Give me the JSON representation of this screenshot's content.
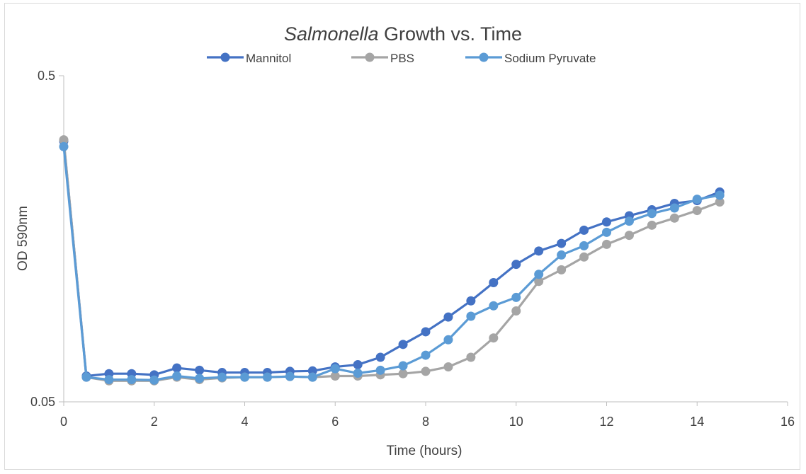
{
  "chart_data": {
    "type": "line",
    "title_italic": "Salmonella",
    "title_rest": " Growth vs. Time",
    "xlabel": "Time (hours)",
    "ylabel": "OD 590nm",
    "x_scale": "linear",
    "y_scale": "log",
    "xlim": [
      0,
      16
    ],
    "ylim": [
      0.05,
      0.5
    ],
    "x_ticks": [
      0,
      2,
      4,
      6,
      8,
      10,
      12,
      14,
      16
    ],
    "y_ticks": [
      0.05,
      0.5
    ],
    "x_tick_labels": [
      "0",
      "2",
      "4",
      "6",
      "8",
      "10",
      "12",
      "14",
      "16"
    ],
    "y_tick_labels": [
      "0.05",
      "0.5"
    ],
    "grid": false,
    "legend_position": "top",
    "x": [
      0,
      0.5,
      1,
      1.5,
      2,
      2.5,
      3,
      3.5,
      4,
      4.5,
      5,
      5.5,
      6,
      6.5,
      7,
      7.5,
      8,
      8.5,
      9,
      9.5,
      10,
      10.5,
      11,
      11.5,
      12,
      12.5,
      13,
      13.5,
      14,
      14.5
    ],
    "series": [
      {
        "name": "Mannitol",
        "color": "#4472C4",
        "values": [
          0.315,
          0.06,
          0.061,
          0.061,
          0.0605,
          0.0635,
          0.0625,
          0.0615,
          0.0615,
          0.0615,
          0.062,
          0.0622,
          0.064,
          0.065,
          0.0685,
          0.075,
          0.082,
          0.091,
          0.102,
          0.116,
          0.132,
          0.145,
          0.153,
          0.168,
          0.178,
          0.186,
          0.194,
          0.203,
          0.207,
          0.22
        ]
      },
      {
        "name": "PBS",
        "color": "#A5A5A5",
        "values": [
          0.318,
          0.0595,
          0.058,
          0.058,
          0.058,
          0.0595,
          0.0585,
          0.0592,
          0.0595,
          0.0595,
          0.0598,
          0.0595,
          0.06,
          0.06,
          0.0605,
          0.061,
          0.062,
          0.064,
          0.0685,
          0.0785,
          0.095,
          0.117,
          0.127,
          0.139,
          0.152,
          0.162,
          0.174,
          0.183,
          0.193,
          0.205
        ]
      },
      {
        "name": "Sodium Pyruvate",
        "color": "#5B9BD5",
        "values": [
          0.303,
          0.0595,
          0.0585,
          0.0585,
          0.0583,
          0.06,
          0.059,
          0.0595,
          0.0595,
          0.0595,
          0.0598,
          0.0595,
          0.0632,
          0.0612,
          0.0625,
          0.0645,
          0.0695,
          0.0775,
          0.0915,
          0.0985,
          0.1045,
          0.123,
          0.141,
          0.1505,
          0.1655,
          0.179,
          0.189,
          0.1965,
          0.209,
          0.215
        ]
      }
    ]
  }
}
